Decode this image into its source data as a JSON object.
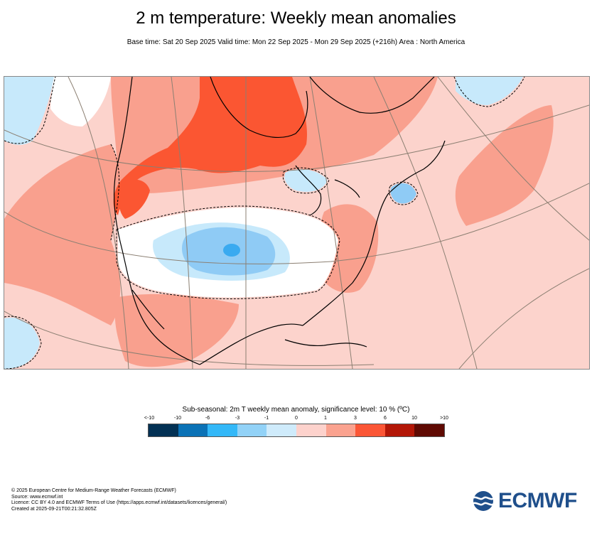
{
  "header": {
    "title": "2 m temperature: Weekly mean anomalies",
    "subtitle": "Base time: Sat 20 Sep 2025 Valid time: Mon 22 Sep 2025 - Mon 29 Sep 2025 (+216h) Area : North America"
  },
  "map": {
    "region": "North America",
    "colors": {
      "ocean_base": "#fcd3cc",
      "land_base": "#fcd3cc",
      "warm_moderate": "#f9a08e",
      "warm_strong": "#fb5632",
      "cool_light": "#c7e9fb",
      "cool_moderate": "#8fcbf5",
      "cool_strong": "#3aaaf0",
      "neutral": "#ffffff",
      "coastline": "#000000",
      "graticule": "#8b7f72"
    }
  },
  "legend": {
    "title": "Sub-seasonal: 2m T weekly mean anomaly, significance level: 10 % (ºC)",
    "ticks": [
      "<-10",
      "-10",
      "-6",
      "-3",
      "-1",
      "0",
      "1",
      "3",
      "6",
      "10",
      ">10"
    ],
    "colors": [
      "#033154",
      "#0b72b6",
      "#33b8f8",
      "#92d2f7",
      "#cfebfb",
      "#fdd2cc",
      "#faa28f",
      "#fb5636",
      "#b31707",
      "#5f0a03"
    ]
  },
  "footer": {
    "line1": "© 2025 European Centre for Medium-Range Weather Forecasts (ECMWF)",
    "line2": "Source: www.ecmwf.int",
    "line3": "Licence: CC BY 4.0 and ECMWF Terms of Use (https://apps.ecmwf.int/datasets/licences/general/)",
    "line4": "Created at 2025-09-21T00:21:32.805Z"
  },
  "logo": {
    "text": "ECMWF",
    "color": "#1f4f8b"
  }
}
